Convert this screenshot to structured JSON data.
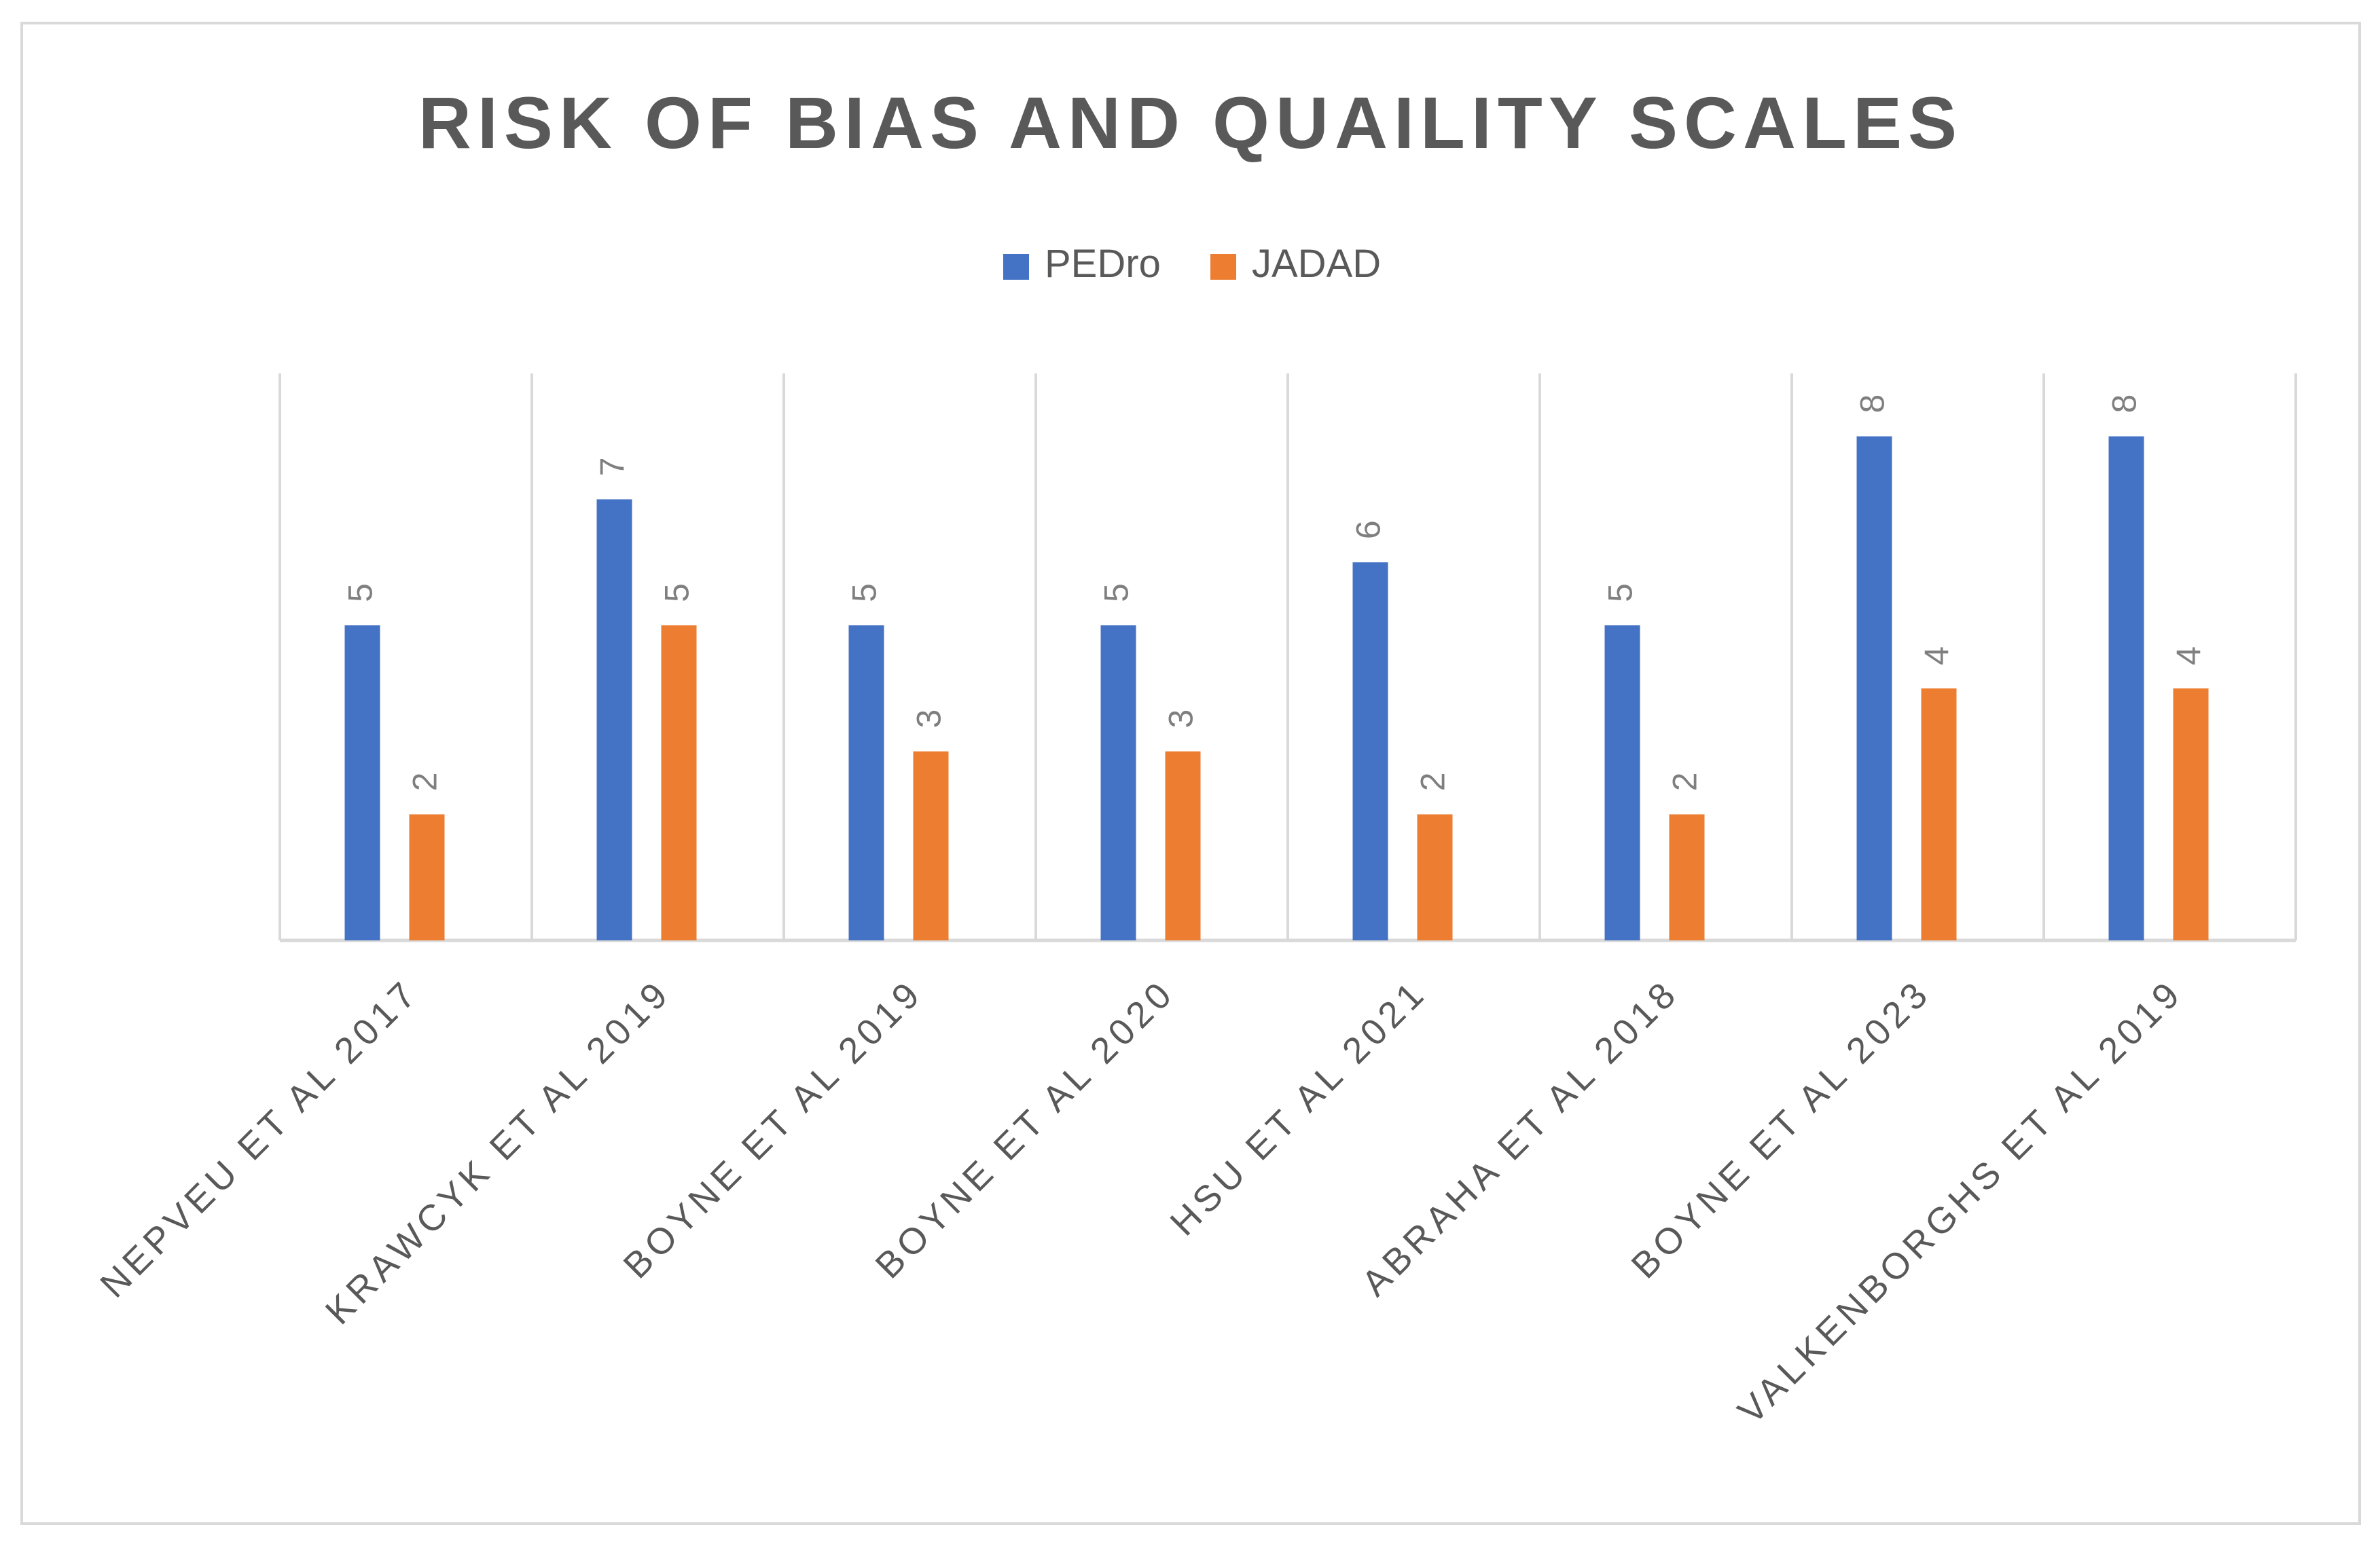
{
  "chart_data": {
    "type": "bar",
    "title": "RISK OF BIAS AND QUAILITY SCALES",
    "xlabel": "",
    "ylabel": "",
    "ylim": [
      0,
      9
    ],
    "grid": "vertical-category-separators",
    "legend_position": "top-center",
    "categories": [
      "NEPVEU ET AL 2017",
      "KRAWCYK ET AL 2019",
      "BOYNE ET AL 2019",
      "BOYNE ET AL 2020",
      "HSU ET AL 2021",
      "ABRAHA ET AL 2018",
      "BOYNE ET AL 2023",
      "VALKENBORGHS ET AL 2019"
    ],
    "series": [
      {
        "name": "PEDro",
        "color": "#4472C4",
        "values": [
          5,
          7,
          5,
          5,
          6,
          5,
          8,
          8
        ]
      },
      {
        "name": "JADAD",
        "color": "#ED7D31",
        "values": [
          2,
          5,
          3,
          3,
          2,
          2,
          4,
          4
        ]
      }
    ]
  }
}
